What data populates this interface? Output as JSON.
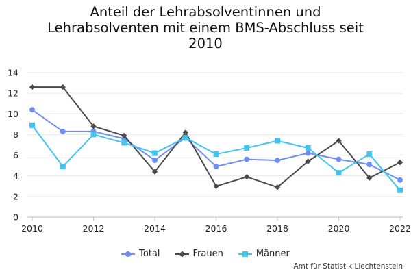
{
  "title_lines": [
    "Anteil der Lehrabsolventinnen und",
    "Lehrabsolventen mit einem BMS-Abschluss seit",
    "2010"
  ],
  "credit": "Amt für Statistik Liechtenstein",
  "chart_data": {
    "type": "line",
    "title": "Anteil der Lehrabsolventinnen und Lehrabsolventen mit einem BMS-Abschluss seit 2010",
    "xlabel": "",
    "ylabel": "",
    "x": [
      2010,
      2011,
      2012,
      2013,
      2014,
      2015,
      2016,
      2017,
      2018,
      2019,
      2020,
      2021,
      2022
    ],
    "x_ticks": [
      "2010",
      "2012",
      "2014",
      "2016",
      "2018",
      "2020",
      "2022"
    ],
    "y_ticks": [
      "0",
      "2",
      "4",
      "6",
      "8",
      "10",
      "12",
      "14"
    ],
    "xlim": [
      2010,
      2022
    ],
    "ylim": [
      0,
      14
    ],
    "grid": "horizontal",
    "legend_position": "bottom-center",
    "series": [
      {
        "name": "Total",
        "color": "#6f8ff0",
        "marker": "circle",
        "values": [
          10.4,
          8.3,
          8.3,
          7.6,
          5.5,
          7.7,
          4.9,
          5.6,
          5.5,
          6.2,
          5.6,
          5.1,
          3.6
        ]
      },
      {
        "name": "Frauen",
        "color": "#4a4a4e",
        "marker": "diamond",
        "values": [
          12.6,
          12.6,
          8.8,
          7.9,
          4.4,
          8.2,
          3.0,
          3.9,
          2.9,
          5.4,
          7.4,
          3.8,
          5.3
        ]
      },
      {
        "name": "Männer",
        "color": "#42c4ee",
        "marker": "square",
        "values": [
          8.9,
          4.9,
          8.0,
          7.2,
          6.2,
          7.7,
          6.1,
          6.7,
          7.4,
          6.7,
          4.3,
          6.1,
          2.6
        ]
      }
    ]
  }
}
